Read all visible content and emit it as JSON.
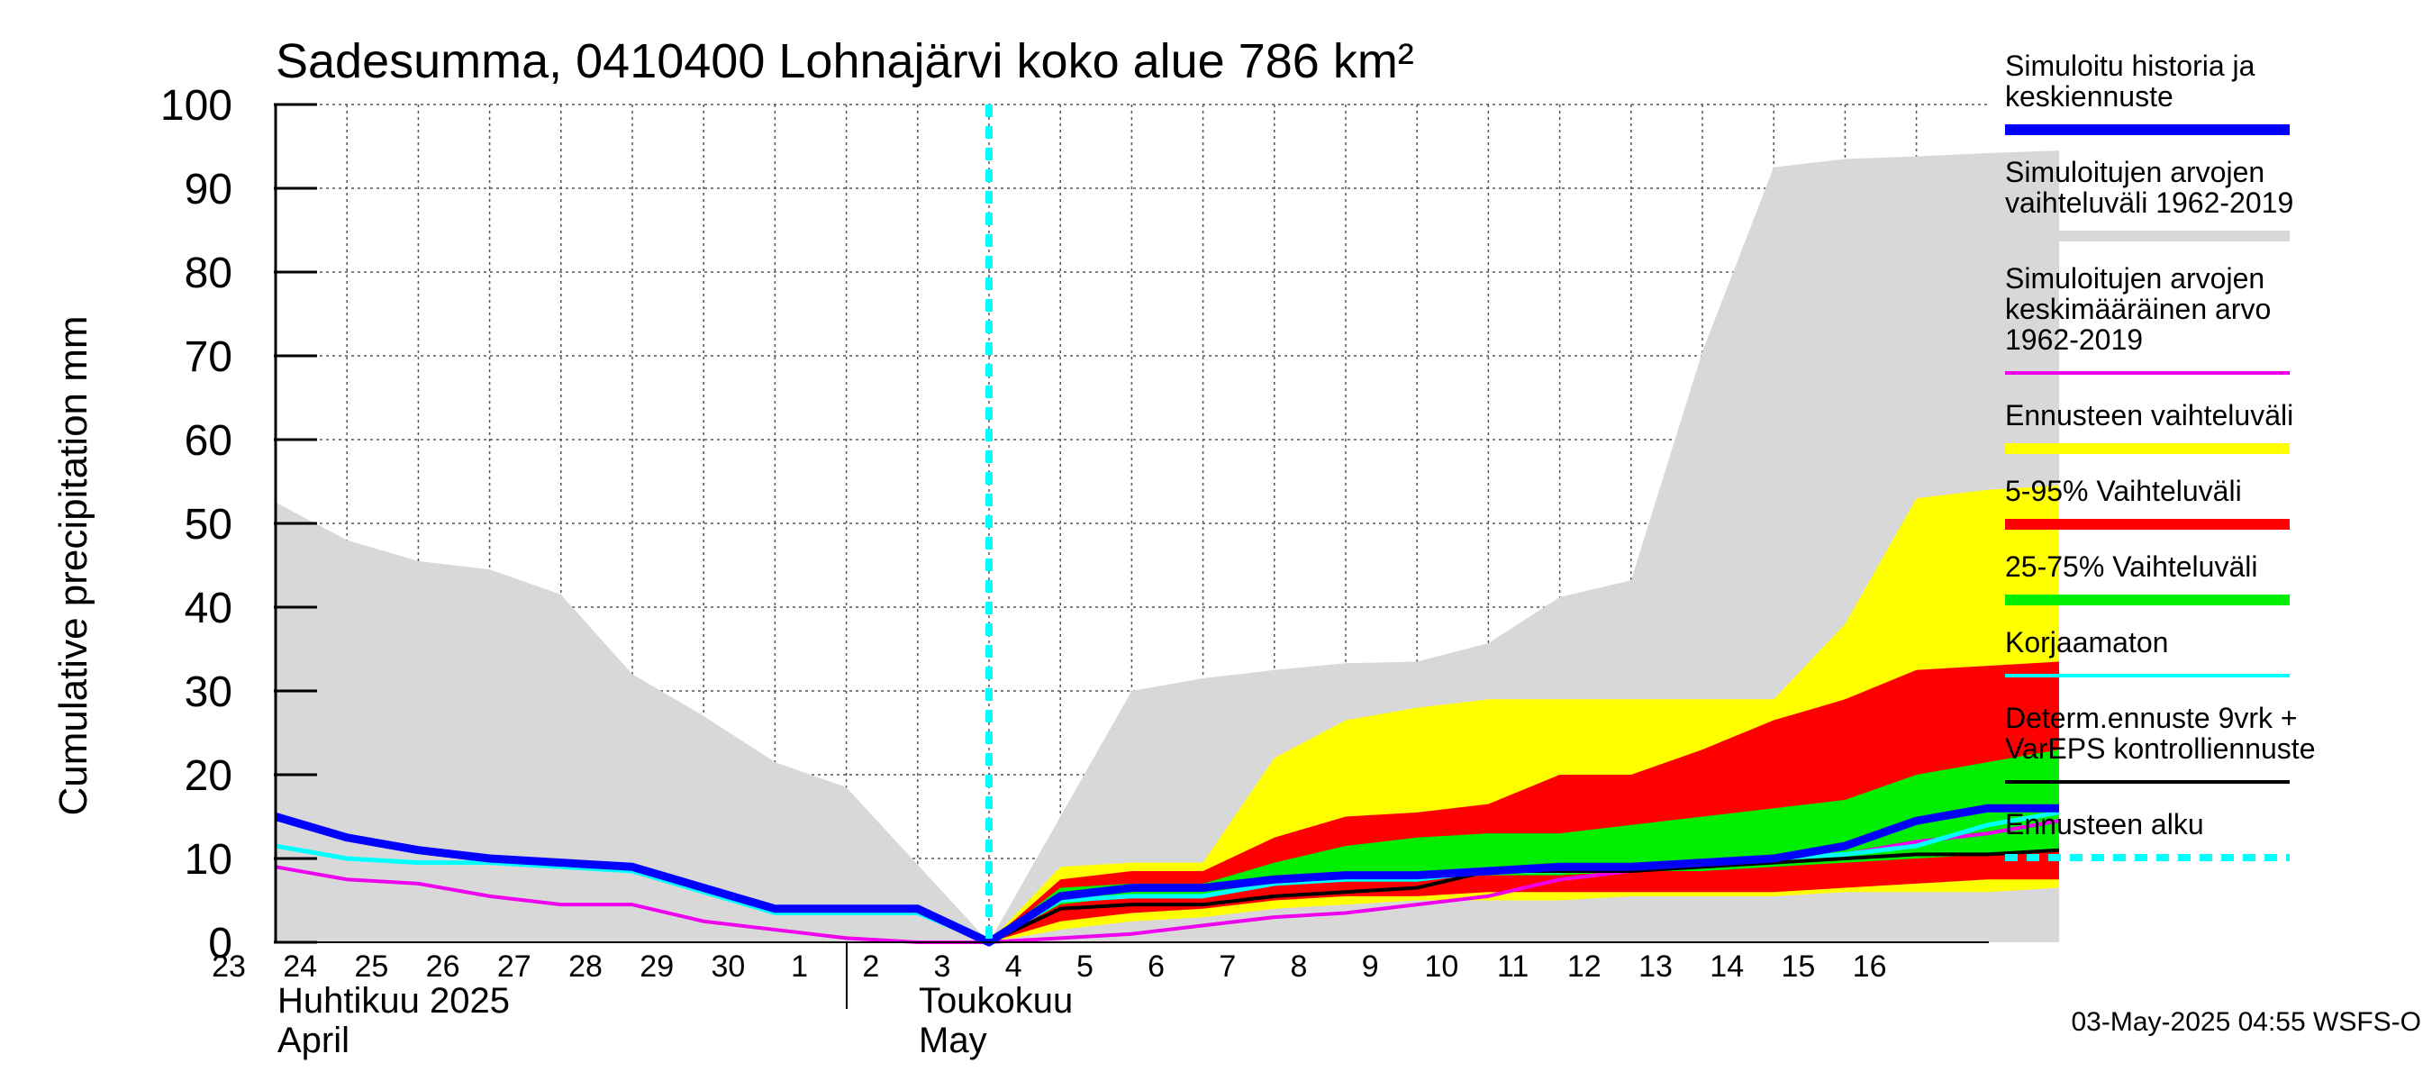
{
  "chart_data": {
    "type": "area",
    "title": "Sadesumma, 0410400 Lohnajärvi koko alue 786 km²",
    "ylabel": "Cumulative precipitation   mm",
    "ylim": [
      0,
      100
    ],
    "yticks": [
      0,
      10,
      20,
      30,
      40,
      50,
      60,
      70,
      80,
      90,
      100
    ],
    "x_day_offsets": [
      -10,
      -9,
      -8,
      -7,
      -6,
      -5,
      -4,
      -3,
      -2,
      -1,
      0,
      1,
      2,
      3,
      4,
      5,
      6,
      7,
      8,
      9,
      10,
      11,
      12,
      13,
      14,
      15
    ],
    "x_tick_labels": [
      "23",
      "24",
      "25",
      "26",
      "27",
      "28",
      "29",
      "30",
      "1",
      "2",
      "3",
      "4",
      "5",
      "6",
      "7",
      "8",
      "9",
      "10",
      "11",
      "12",
      "13",
      "14",
      "15",
      "16"
    ],
    "month_labels": {
      "april_fi": "Huhtikuu  2025",
      "april_en": "April",
      "may_fi": "Toukokuu",
      "may_en": "May"
    },
    "forecast_start_offset": 0,
    "series": [
      {
        "name": "Simuloitujen arvojen vaihteluväli 1962-2019",
        "kind": "band",
        "color": "#d8d8d8",
        "x": [
          -10,
          -9,
          -8,
          -7,
          -6,
          -5,
          -4,
          -3,
          -2,
          0,
          2,
          3,
          4,
          5,
          6,
          7,
          8,
          9,
          10,
          11,
          12,
          13,
          14,
          15
        ],
        "lower": [
          0,
          0,
          0,
          0,
          0,
          0,
          0,
          0,
          0,
          0,
          0,
          0,
          0,
          0,
          0,
          0,
          0,
          0,
          0,
          0,
          0,
          0,
          0,
          0
        ],
        "upper": [
          52.5,
          48,
          45.5,
          44.5,
          41.5,
          32,
          27,
          21.5,
          18.5,
          0,
          30,
          31.5,
          32.5,
          33.3,
          33.5,
          35.7,
          41.2,
          43.2,
          70.5,
          92.5,
          93.5,
          93.8,
          94.2,
          94.5
        ]
      },
      {
        "name": "Ennusteen vaihteluväli",
        "kind": "band",
        "color": "#ffff00",
        "x": [
          0,
          1,
          2,
          3,
          4,
          5,
          6,
          7,
          8,
          9,
          10,
          11,
          12,
          13,
          14,
          15
        ],
        "lower": [
          0,
          1.5,
          2.5,
          3,
          4,
          4.5,
          5,
          5,
          5,
          5.5,
          5.5,
          5.5,
          6,
          6,
          6,
          6.5
        ],
        "upper": [
          0,
          9,
          9.5,
          9.5,
          22,
          26.5,
          28,
          29,
          29,
          29,
          29,
          29,
          38,
          53,
          54,
          54.5
        ]
      },
      {
        "name": "5-95% Vaihteluväli",
        "kind": "band",
        "color": "#ff0000",
        "x": [
          0,
          1,
          2,
          3,
          4,
          5,
          6,
          7,
          8,
          9,
          10,
          11,
          12,
          13,
          14,
          15
        ],
        "lower": [
          0,
          2.5,
          3.5,
          4,
          5,
          5.5,
          5.5,
          6,
          6,
          6,
          6,
          6,
          6.5,
          7,
          7.5,
          7.5
        ],
        "upper": [
          0,
          7.5,
          8.5,
          8.5,
          12.5,
          15,
          15.5,
          16.5,
          20,
          20,
          23,
          26.5,
          29,
          32.5,
          33,
          33.5
        ]
      },
      {
        "name": "25-75% Vaihteluväli",
        "kind": "band",
        "color": "#00ee00",
        "x": [
          0,
          1,
          2,
          3,
          4,
          5,
          6,
          7,
          8,
          9,
          10,
          11,
          12,
          13,
          14,
          15
        ],
        "lower": [
          0,
          4.5,
          5.5,
          5.5,
          7,
          7.5,
          7.5,
          8,
          8,
          8.5,
          8.5,
          9,
          9.5,
          10,
          10.5,
          11
        ],
        "upper": [
          0,
          6.5,
          7,
          7,
          9.5,
          11.5,
          12.5,
          13,
          13,
          14,
          15,
          16,
          17,
          20,
          21.5,
          23
        ]
      },
      {
        "name": "Simuloitujen arvojen keskimääräinen arvo 1962-2019",
        "kind": "line",
        "color": "#ee00ee",
        "width": 4,
        "x": [
          -10,
          -9,
          -8,
          -7,
          -6,
          -5,
          -4,
          -3,
          -2,
          -1,
          0,
          1,
          2,
          3,
          4,
          5,
          6,
          7,
          8,
          9,
          10,
          11,
          12,
          13,
          14,
          15
        ],
        "y": [
          9,
          7.5,
          7,
          5.5,
          4.5,
          4.5,
          2.5,
          1.5,
          0.5,
          0,
          0,
          0.5,
          1,
          2,
          3,
          3.5,
          4.5,
          5.5,
          7.5,
          8.5,
          9.5,
          10,
          10.5,
          12,
          13,
          14.5
        ]
      },
      {
        "name": "Korjaamaton",
        "kind": "line",
        "color": "#00ffff",
        "width": 5,
        "x": [
          -10,
          -9,
          -8,
          -7,
          -6,
          -5,
          -4,
          -3,
          -2,
          -1,
          0,
          1,
          2,
          3,
          4,
          5,
          6,
          7,
          8,
          9,
          10,
          11,
          12,
          13,
          14,
          15
        ],
        "y": [
          11.5,
          10,
          9.5,
          9.5,
          9,
          8.5,
          6,
          3.5,
          3.5,
          3.5,
          0,
          5,
          5.5,
          5.5,
          7,
          7.5,
          7.5,
          8.5,
          8.5,
          9,
          9.5,
          10,
          10.5,
          11.5,
          14,
          15.5
        ]
      },
      {
        "name": "Determ.ennuste 9vrk + VarEPS kontrolliennuste",
        "kind": "line",
        "color": "#000000",
        "width": 4,
        "x": [
          0,
          1,
          2,
          3,
          4,
          5,
          6,
          7,
          8,
          9,
          10,
          11,
          12,
          13,
          14,
          15
        ],
        "y": [
          0,
          4,
          4.5,
          4.5,
          5.5,
          6,
          6.5,
          8.5,
          8.5,
          8.5,
          9,
          9.5,
          10,
          10.5,
          10.5,
          11
        ]
      },
      {
        "name": "Simuloitu historia ja keskiennuste",
        "kind": "line",
        "color": "#0000ff",
        "width": 9,
        "x": [
          -10,
          -9,
          -8,
          -7,
          -6,
          -5,
          -4,
          -3,
          -2,
          -1,
          0,
          1,
          2,
          3,
          4,
          5,
          6,
          7,
          8,
          9,
          10,
          11,
          12,
          13,
          14,
          15
        ],
        "y": [
          15,
          12.5,
          11,
          10,
          9.5,
          9,
          6.5,
          4,
          4,
          4,
          0,
          5.5,
          6.5,
          6.5,
          7.5,
          8,
          8,
          8.5,
          9,
          9,
          9.5,
          10,
          11.5,
          14.5,
          16,
          16
        ]
      }
    ]
  },
  "legend": [
    {
      "lines": [
        "Simuloitu historia ja",
        "keskiennuste"
      ],
      "color": "#0000ff",
      "style": "thick"
    },
    {
      "lines": [
        "Simuloitujen arvojen",
        "vaihteluväli 1962-2019"
      ],
      "color": "#d8d8d8",
      "style": "thick"
    },
    {
      "lines": [
        "Simuloitujen arvojen",
        "keskimääräinen arvo",
        "   1962-2019"
      ],
      "color": "#ee00ee",
      "style": "thin"
    },
    {
      "lines": [
        "Ennusteen vaihteluväli"
      ],
      "color": "#ffff00",
      "style": "thick"
    },
    {
      "lines": [
        "5-95% Vaihteluväli"
      ],
      "color": "#ff0000",
      "style": "thick"
    },
    {
      "lines": [
        "25-75% Vaihteluväli"
      ],
      "color": "#00ee00",
      "style": "thick"
    },
    {
      "lines": [
        "Korjaamaton"
      ],
      "color": "#00ffff",
      "style": "thin"
    },
    {
      "lines": [
        "Determ.ennuste 9vrk +",
        "VarEPS kontrolliennuste"
      ],
      "color": "#000000",
      "style": "thin"
    },
    {
      "lines": [
        "Ennusteen alku"
      ],
      "color": "#00ffff",
      "style": "dashed"
    }
  ],
  "footer": "03-May-2025 04:55 WSFS-O"
}
